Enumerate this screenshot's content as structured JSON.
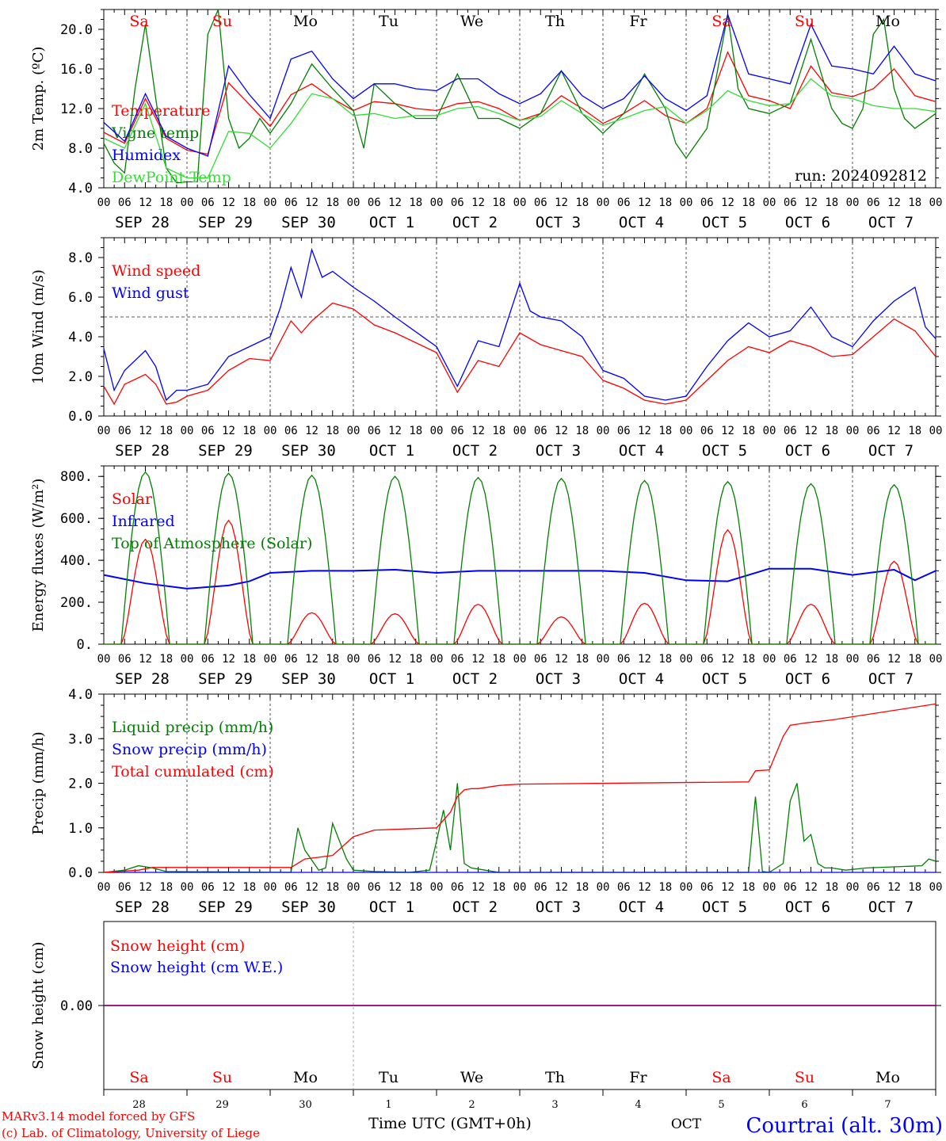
{
  "meta": {
    "model_line": "MARv3.14 model forced by GFS",
    "credit_line": "(c) Lab. of Climatology, University of Liege",
    "xlabel": "Time UTC (GMT+0h)",
    "month_label": "OCT",
    "location": "Courtrai (alt. 30m)",
    "run_label": "run: 2024092812"
  },
  "days": {
    "weekday_labels": [
      "Sa",
      "Su",
      "Mo",
      "Tu",
      "We",
      "Th",
      "Fr",
      "Sa",
      "Su",
      "Mo"
    ],
    "weekend_flags": [
      true,
      true,
      false,
      false,
      false,
      false,
      false,
      true,
      true,
      false
    ],
    "date_labels": [
      "SEP 28",
      "SEP 29",
      "SEP 30",
      "OCT  1",
      "OCT  2",
      "OCT  3",
      "OCT  4",
      "OCT  5",
      "OCT  6",
      "OCT  7"
    ],
    "day_numbers": [
      "28",
      "29",
      "30",
      "1",
      "2",
      "3",
      "4",
      "5",
      "6",
      "7"
    ],
    "hour_ticks": [
      "00",
      "06",
      "12",
      "18"
    ],
    "final_tick": "00"
  },
  "colors": {
    "red": "#ff0000",
    "green": "#008000",
    "blue": "#0000ff",
    "light_green": "#33dd33",
    "purple": "#800080",
    "axis": "#000000",
    "grid": "#555555"
  },
  "chart_data": [
    {
      "type": "line",
      "ylabel": "2m Temp. (ºC)",
      "ylim": [
        4,
        22
      ],
      "yticks": [
        "4.0",
        "8.0",
        "12.0",
        "16.0",
        "20.0"
      ],
      "ytick_values": [
        4,
        8,
        12,
        16,
        20
      ],
      "legend_placement": "left",
      "x_unit": "hours since 2024-09-28 00 UTC",
      "series": [
        {
          "name": "Temperature",
          "color": "#ff0000",
          "x": [
            0,
            6,
            12,
            18,
            24,
            30,
            36,
            42,
            48,
            54,
            60,
            66,
            72,
            78,
            84,
            90,
            96,
            102,
            108,
            114,
            120,
            126,
            132,
            138,
            144,
            150,
            156,
            162,
            168,
            174,
            180,
            186,
            192,
            198,
            204,
            210,
            216,
            222,
            228,
            234,
            240
          ],
          "y": [
            9.6,
            8.5,
            13.0,
            9.0,
            7.8,
            7.4,
            14.6,
            12.4,
            10.2,
            13.4,
            14.5,
            13.0,
            11.8,
            12.7,
            12.5,
            12.0,
            11.8,
            12.5,
            12.7,
            12.0,
            10.8,
            11.5,
            13.3,
            12.0,
            10.5,
            11.5,
            12.8,
            11.3,
            10.5,
            12.0,
            17.7,
            13.3,
            12.8,
            12.0,
            16.3,
            13.6,
            13.2,
            14.0,
            16.0,
            13.3,
            12.7
          ]
        },
        {
          "name": "Vigne temp",
          "color": "#008000",
          "x": [
            0,
            3,
            6,
            9,
            12,
            15,
            18,
            21,
            24,
            27,
            30,
            33,
            36,
            39,
            42,
            45,
            48,
            54,
            60,
            66,
            72,
            75,
            78,
            84,
            90,
            96,
            102,
            108,
            114,
            120,
            126,
            132,
            138,
            144,
            150,
            156,
            162,
            165,
            168,
            174,
            180,
            183,
            186,
            192,
            198,
            204,
            210,
            213,
            216,
            219,
            222,
            225,
            228,
            231,
            234,
            240
          ],
          "y": [
            8.5,
            6.5,
            5.5,
            14.0,
            20.5,
            13.0,
            6.0,
            4.5,
            4.6,
            4.6,
            19.5,
            22.0,
            11.0,
            8.0,
            9.0,
            11.0,
            9.5,
            12.5,
            16.5,
            14.0,
            11.8,
            8.0,
            14.5,
            12.5,
            11.0,
            11.0,
            15.5,
            11.0,
            11.0,
            10.0,
            11.5,
            15.8,
            11.5,
            9.5,
            11.5,
            15.5,
            12.0,
            8.5,
            7.0,
            10.0,
            21.5,
            14.0,
            12.0,
            11.5,
            12.5,
            19.0,
            12.0,
            10.5,
            10.0,
            12.0,
            19.5,
            21.0,
            14.0,
            11.0,
            10.0,
            11.5
          ]
        },
        {
          "name": "Humidex",
          "color": "#0000ff",
          "x": [
            0,
            6,
            12,
            18,
            24,
            30,
            36,
            42,
            48,
            54,
            60,
            66,
            72,
            78,
            84,
            90,
            96,
            102,
            108,
            114,
            120,
            126,
            132,
            138,
            144,
            150,
            156,
            162,
            168,
            174,
            180,
            186,
            192,
            198,
            204,
            210,
            216,
            222,
            228,
            234,
            240
          ],
          "y": [
            10.6,
            8.7,
            13.5,
            9.2,
            8.0,
            7.2,
            16.3,
            13.4,
            11.0,
            17.0,
            17.8,
            15.0,
            13.0,
            14.5,
            14.5,
            14.0,
            13.8,
            15.0,
            15.0,
            13.5,
            12.5,
            13.5,
            15.8,
            13.3,
            12.0,
            13.0,
            15.3,
            13.0,
            11.8,
            13.3,
            21.5,
            15.5,
            15.0,
            14.5,
            20.5,
            16.3,
            16.0,
            15.5,
            18.3,
            15.5,
            14.8
          ]
        },
        {
          "name": "DewPoint Temp",
          "color": "#33dd33",
          "x": [
            0,
            6,
            12,
            18,
            24,
            30,
            36,
            42,
            48,
            54,
            60,
            66,
            72,
            78,
            84,
            90,
            96,
            102,
            108,
            114,
            120,
            126,
            132,
            138,
            144,
            150,
            156,
            162,
            168,
            174,
            180,
            186,
            192,
            198,
            204,
            210,
            216,
            222,
            228,
            234,
            240
          ],
          "y": [
            9.0,
            8.0,
            12.5,
            6.0,
            5.0,
            5.0,
            9.7,
            9.5,
            8.0,
            10.5,
            13.5,
            13.0,
            11.3,
            11.5,
            11.0,
            11.3,
            11.3,
            12.0,
            12.2,
            11.5,
            10.8,
            11.2,
            12.8,
            11.5,
            10.3,
            11.0,
            11.8,
            12.2,
            10.5,
            11.8,
            13.8,
            12.8,
            12.3,
            12.5,
            15.0,
            13.3,
            13.0,
            12.3,
            12.0,
            12.0,
            11.7
          ]
        }
      ]
    },
    {
      "type": "line",
      "ylabel": "10m Wind (m/s)",
      "ylim": [
        0,
        9
      ],
      "yticks": [
        "0.0",
        "2.0",
        "4.0",
        "6.0",
        "8.0"
      ],
      "ytick_values": [
        0,
        2,
        4,
        6,
        8
      ],
      "ref_line": 5.0,
      "legend_placement": "left",
      "x_unit": "hours since 2024-09-28 00 UTC",
      "series": [
        {
          "name": "Wind speed",
          "color": "#ff0000",
          "x": [
            0,
            3,
            6,
            12,
            15,
            18,
            21,
            24,
            30,
            36,
            42,
            48,
            54,
            57,
            60,
            66,
            72,
            78,
            84,
            96,
            102,
            108,
            114,
            120,
            126,
            132,
            138,
            144,
            150,
            156,
            162,
            168,
            174,
            180,
            186,
            192,
            198,
            204,
            210,
            216,
            222,
            228,
            234,
            240
          ],
          "y": [
            1.5,
            0.6,
            1.6,
            2.1,
            1.6,
            0.6,
            0.7,
            1.0,
            1.3,
            2.3,
            2.9,
            2.8,
            4.8,
            4.2,
            4.8,
            5.7,
            5.4,
            4.6,
            4.2,
            3.2,
            1.2,
            2.8,
            2.5,
            4.2,
            3.6,
            3.3,
            3.0,
            1.8,
            1.4,
            0.8,
            0.6,
            0.8,
            1.8,
            2.8,
            3.5,
            3.2,
            3.8,
            3.5,
            3.0,
            3.1,
            4.0,
            4.9,
            4.3,
            3.0
          ]
        },
        {
          "name": "Wind gust",
          "color": "#0000ff",
          "x": [
            0,
            3,
            6,
            12,
            15,
            18,
            21,
            24,
            30,
            36,
            42,
            48,
            51,
            54,
            57,
            60,
            63,
            66,
            72,
            78,
            84,
            96,
            102,
            108,
            114,
            120,
            123,
            126,
            132,
            138,
            144,
            150,
            156,
            162,
            168,
            174,
            180,
            186,
            192,
            198,
            204,
            210,
            216,
            222,
            228,
            234,
            237,
            240
          ],
          "y": [
            3.4,
            1.3,
            2.3,
            3.3,
            2.5,
            0.8,
            1.3,
            1.3,
            1.6,
            3.0,
            3.5,
            4.0,
            5.5,
            7.5,
            6.0,
            8.4,
            7.0,
            7.3,
            6.5,
            5.8,
            5.0,
            3.5,
            1.5,
            3.8,
            3.5,
            6.7,
            5.3,
            5.0,
            4.8,
            4.0,
            2.3,
            1.9,
            1.0,
            0.8,
            1.0,
            2.5,
            3.8,
            4.7,
            4.0,
            4.3,
            5.5,
            4.0,
            3.5,
            4.8,
            5.8,
            6.5,
            4.5,
            3.9
          ]
        }
      ]
    },
    {
      "type": "line",
      "ylabel": "Energy fluxes (W/m²)",
      "ylim": [
        0,
        850
      ],
      "yticks": [
        "0.",
        "200.",
        "400.",
        "600.",
        "800."
      ],
      "ytick_values": [
        0,
        200,
        400,
        600,
        800
      ],
      "legend_placement": "left",
      "x_unit": "hours since 2024-09-28 00 UTC",
      "series": [
        {
          "name": "Solar",
          "color": "#ff0000",
          "daily_peaks": [
            500,
            590,
            150,
            145,
            190,
            130,
            195,
            545,
            190,
            395
          ]
        },
        {
          "name": "Infrared",
          "color": "#0000ff",
          "x": [
            0,
            12,
            24,
            36,
            42,
            48,
            60,
            72,
            84,
            96,
            108,
            120,
            132,
            144,
            156,
            168,
            180,
            192,
            204,
            216,
            228,
            234,
            240
          ],
          "y": [
            330,
            290,
            265,
            280,
            300,
            340,
            350,
            350,
            355,
            340,
            350,
            350,
            350,
            350,
            340,
            305,
            300,
            360,
            360,
            330,
            355,
            305,
            350
          ]
        },
        {
          "name": "Top of Atmosphere (Solar)",
          "color": "#008000",
          "daily_peaks": [
            820,
            815,
            805,
            800,
            795,
            790,
            780,
            775,
            765,
            760
          ]
        }
      ]
    },
    {
      "type": "line",
      "ylabel": "Precip (mm/h)",
      "ylim": [
        0,
        4
      ],
      "yticks": [
        "0.0",
        "1.0",
        "2.0",
        "3.0",
        "4.0"
      ],
      "ytick_values": [
        0,
        1,
        2,
        3,
        4
      ],
      "legend_placement": "left",
      "x_unit": "hours since 2024-09-28 00 UTC",
      "series": [
        {
          "name": "Liquid precip (mm/h)",
          "color": "#008000",
          "x": [
            0,
            6,
            10,
            14,
            18,
            54,
            56,
            58,
            62,
            64,
            66,
            70,
            72,
            78,
            88,
            94,
            96,
            98,
            100,
            102,
            104,
            106,
            110,
            114,
            186,
            188,
            190,
            192,
            196,
            198,
            200,
            202,
            204,
            206,
            208,
            210,
            214,
            220,
            236,
            238,
            240
          ],
          "y": [
            0.0,
            0.05,
            0.15,
            0.1,
            0.02,
            0.0,
            1.0,
            0.5,
            0.05,
            0.1,
            1.1,
            0.3,
            0.05,
            0.02,
            0.0,
            0.05,
            0.7,
            1.4,
            0.5,
            2.0,
            0.2,
            0.1,
            0.05,
            0.0,
            0.0,
            1.7,
            0.02,
            0.0,
            0.2,
            1.6,
            2.0,
            0.7,
            0.85,
            0.2,
            0.1,
            0.1,
            0.05,
            0.1,
            0.15,
            0.3,
            0.25
          ]
        },
        {
          "name": "Snow precip (mm/h)",
          "color": "#0000ff",
          "x": [
            0,
            240
          ],
          "y": [
            0,
            0
          ]
        },
        {
          "name": "Total cumulated (cm)",
          "color": "#ff0000",
          "x": [
            0,
            10,
            14,
            54,
            58,
            66,
            72,
            78,
            96,
            100,
            102,
            104,
            106,
            108,
            114,
            120,
            186,
            188,
            192,
            196,
            198,
            202,
            210,
            240
          ],
          "y": [
            0.0,
            0.05,
            0.11,
            0.11,
            0.3,
            0.38,
            0.8,
            0.95,
            1.0,
            1.35,
            1.7,
            1.85,
            1.88,
            1.88,
            1.95,
            1.98,
            2.03,
            2.28,
            2.3,
            3.05,
            3.3,
            3.35,
            3.42,
            3.78
          ]
        }
      ]
    },
    {
      "type": "line",
      "ylabel": "Snow height (cm)",
      "yticks": [
        "0.00"
      ],
      "ytick_values": [
        0
      ],
      "legend_placement": "left",
      "x_unit": "hours since 2024-09-28 00 UTC",
      "series": [
        {
          "name": "Snow height (cm)",
          "color": "#ff0000",
          "x": [
            0,
            240
          ],
          "y": [
            0,
            0
          ]
        },
        {
          "name": "Snow height (cm W.E.)",
          "color": "#0000ff",
          "x": [
            0,
            240
          ],
          "y": [
            0,
            0
          ]
        }
      ]
    }
  ]
}
